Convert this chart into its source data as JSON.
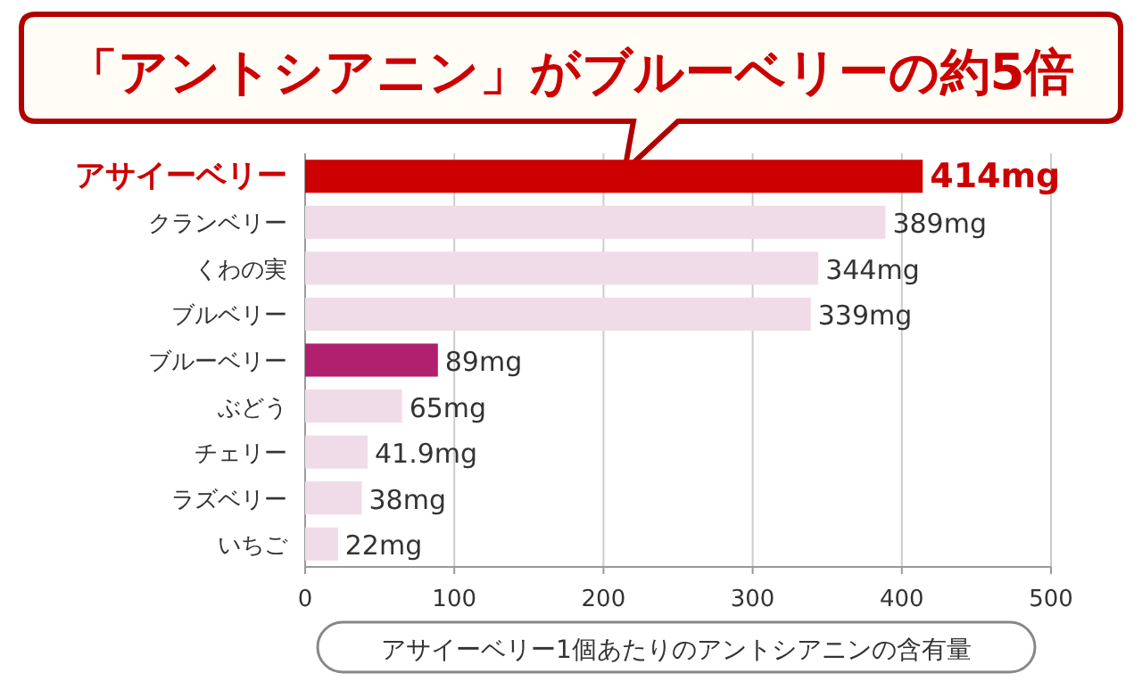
{
  "chart_data": {
    "type": "bar",
    "orientation": "horizontal",
    "title": "「アントシアニン」がブルーベリーの約5倍",
    "xlabel": "アサイーベリー1個あたりのアントシアニンの含有量",
    "categories": [
      "アサイーベリー",
      "クランベリー",
      "くわの実",
      "ブルベリー",
      "ブルーベリー",
      "ぶどう",
      "チェリー",
      "ラズベリー",
      "いちご"
    ],
    "values": [
      414,
      389,
      344,
      339,
      89,
      65,
      41.9,
      38,
      22
    ],
    "colors": [
      "#cc0000",
      "#f0dce8",
      "#f0dce8",
      "#f0dce8",
      "#b0206f",
      "#f0dce8",
      "#f0dce8",
      "#f0dce8",
      "#f0dce8"
    ],
    "value_labels": [
      "414mg",
      "389mg",
      "344mg",
      "339mg",
      "89mg",
      "65mg",
      "41.9mg",
      "38mg",
      "22mg"
    ],
    "xlim": [
      0,
      500
    ],
    "xticks": [
      0,
      100,
      200,
      300,
      400,
      500
    ],
    "grid": "x"
  }
}
